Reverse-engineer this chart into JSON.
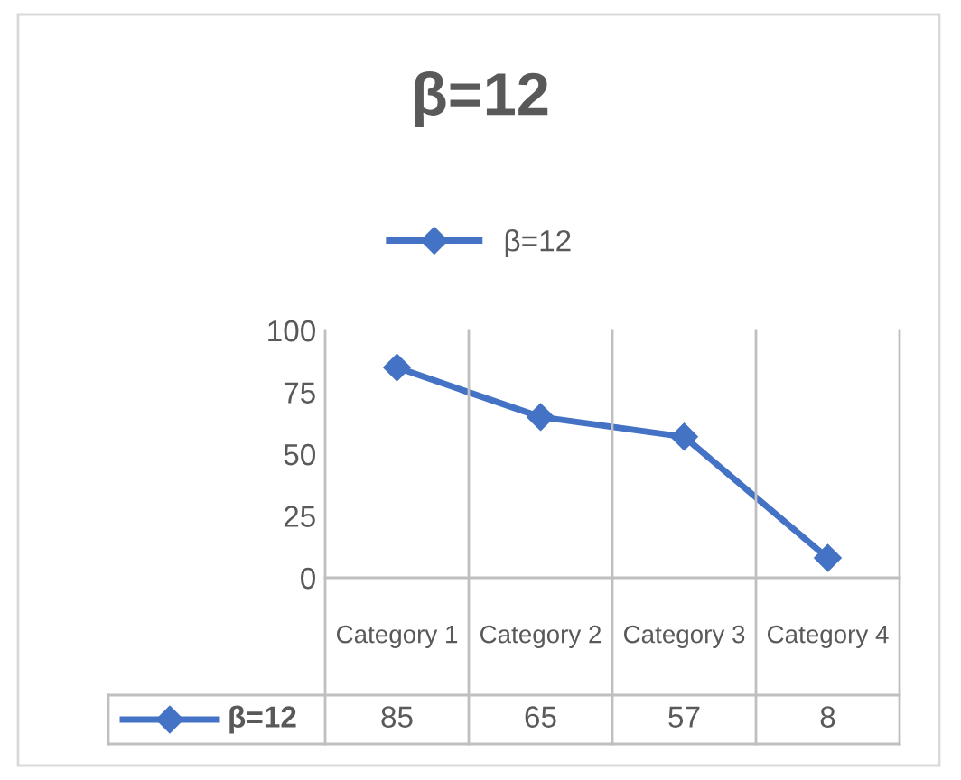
{
  "chart_data": {
    "type": "line",
    "title": "β=12",
    "categories": [
      "Category 1",
      "Category 2",
      "Category 3",
      "Category 4"
    ],
    "series": [
      {
        "name": "β=12",
        "color": "#4472c4",
        "values": [
          85,
          65,
          57,
          8
        ]
      }
    ],
    "ylim": [
      0,
      100
    ],
    "yticks": [
      0,
      25,
      50,
      75,
      100
    ],
    "marker": "diamond",
    "legend": "top",
    "data_labels": true,
    "grid": false
  }
}
